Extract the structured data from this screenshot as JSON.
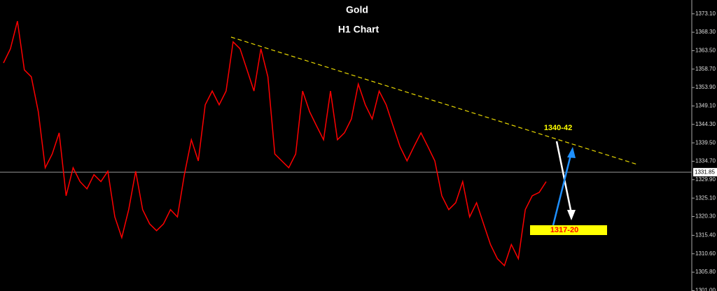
{
  "chart_data": {
    "type": "line",
    "title": "Gold",
    "subtitle": "H1 Chart",
    "series": [
      {
        "color": "#ff0000",
        "values": [
          1360.3,
          1364.0,
          1371.2,
          1358.5,
          1356.7,
          1347.6,
          1333.0,
          1336.6,
          1342.1,
          1325.7,
          1333.0,
          1329.4,
          1327.5,
          1331.2,
          1329.4,
          1332.1,
          1320.2,
          1314.8,
          1322.1,
          1332.1,
          1322.1,
          1318.4,
          1316.6,
          1318.4,
          1322.1,
          1320.2,
          1331.2,
          1340.3,
          1334.8,
          1349.4,
          1353.0,
          1349.4,
          1353.0,
          1365.8,
          1364.0,
          1358.5,
          1353.0,
          1364.0,
          1356.7,
          1336.6,
          1334.8,
          1333.0,
          1336.6,
          1353.0,
          1347.6,
          1343.9,
          1340.3,
          1353.0,
          1340.3,
          1342.1,
          1345.7,
          1354.8,
          1349.4,
          1345.7,
          1353.0,
          1349.4,
          1343.9,
          1338.5,
          1334.8,
          1338.5,
          1342.1,
          1338.5,
          1334.8,
          1325.7,
          1322.1,
          1323.9,
          1329.4,
          1320.2,
          1323.9,
          1318.4,
          1313.0,
          1309.3,
          1307.5,
          1313.0,
          1309.3,
          1322.1,
          1325.7,
          1326.6,
          1329.4
        ]
      }
    ],
    "ylim": [
      1300.9,
      1376.7
    ],
    "yticks": [
      {
        "value": 1373.1,
        "label": "1373.10"
      },
      {
        "value": 1368.3,
        "label": "1368.30"
      },
      {
        "value": 1363.5,
        "label": "1363.50"
      },
      {
        "value": 1358.7,
        "label": "1358.70"
      },
      {
        "value": 1353.9,
        "label": "1353.90"
      },
      {
        "value": 1349.1,
        "label": "1349.10"
      },
      {
        "value": 1344.3,
        "label": "1344.30"
      },
      {
        "value": 1339.5,
        "label": "1339.50"
      },
      {
        "value": 1334.7,
        "label": "1334.70"
      },
      {
        "value": 1329.9,
        "label": "1329.90"
      },
      {
        "value": 1325.1,
        "label": "1325.10"
      },
      {
        "value": 1320.3,
        "label": "1320.30"
      },
      {
        "value": 1315.4,
        "label": "1315.40"
      },
      {
        "value": 1310.6,
        "label": "1310.60"
      },
      {
        "value": 1305.8,
        "label": "1305.80"
      },
      {
        "value": 1301.0,
        "label": "1301.00"
      }
    ],
    "price_line": 1331.85,
    "annotations": [
      "1340-42",
      "1317-20"
    ]
  }
}
